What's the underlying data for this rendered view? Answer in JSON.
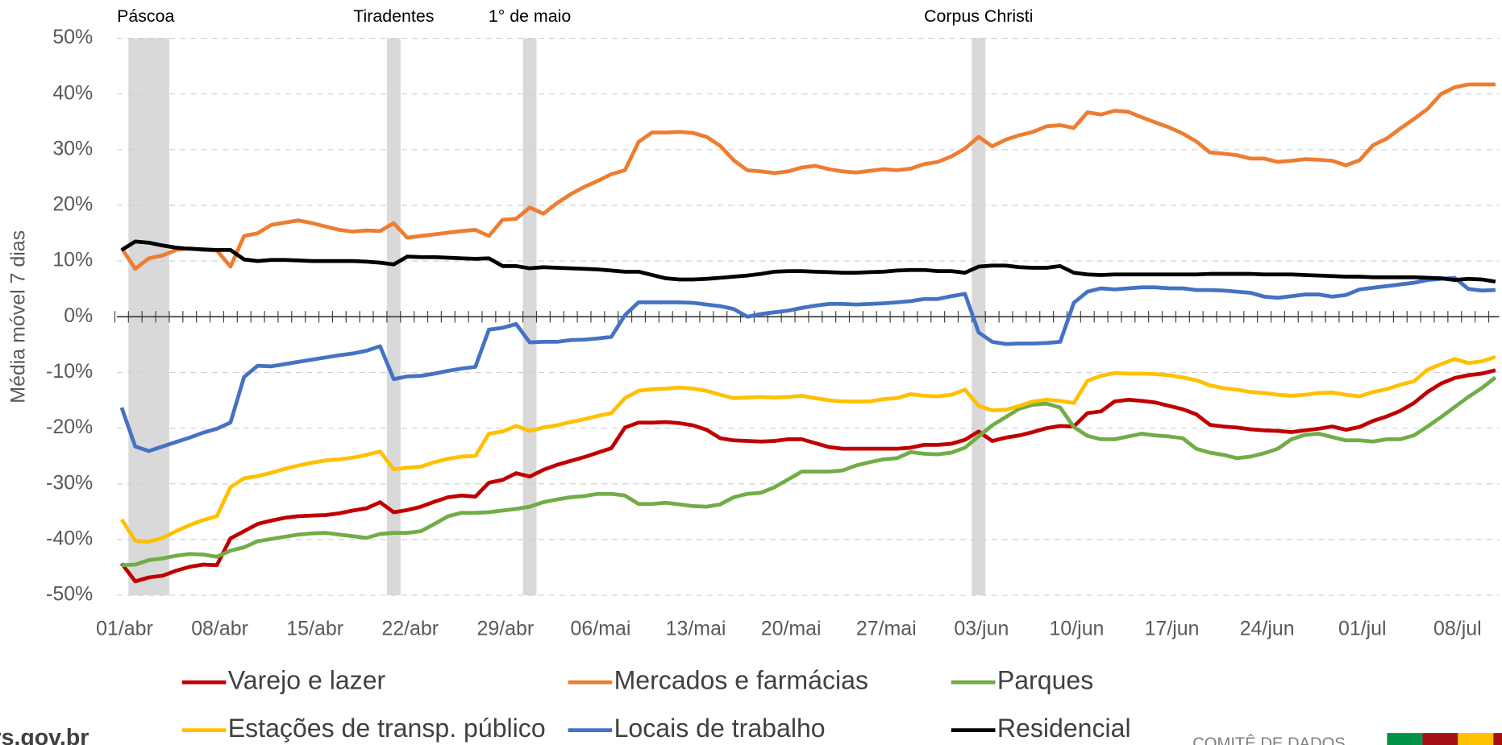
{
  "chart_data": {
    "type": "line",
    "y_axis_label": "Média móvel 7 dias",
    "categories": [
      "01/abr",
      null,
      null,
      null,
      null,
      null,
      null,
      "08/abr",
      null,
      null,
      null,
      null,
      null,
      null,
      "15/abr",
      null,
      null,
      null,
      null,
      null,
      null,
      "22/abr",
      null,
      null,
      null,
      null,
      null,
      null,
      "29/abr",
      null,
      null,
      null,
      null,
      null,
      null,
      "06/mai",
      null,
      null,
      null,
      null,
      null,
      null,
      "13/mai",
      null,
      null,
      null,
      null,
      null,
      null,
      "20/mai",
      null,
      null,
      null,
      null,
      null,
      null,
      "27/mai",
      null,
      null,
      null,
      null,
      null,
      null,
      "03/jun",
      null,
      null,
      null,
      null,
      null,
      null,
      "10/jun",
      null,
      null,
      null,
      null,
      null,
      null,
      "17/jun",
      null,
      null,
      null,
      null,
      null,
      null,
      "24/jun",
      null,
      null,
      null,
      null,
      null,
      null,
      "01/jul",
      null,
      null,
      null,
      null,
      null,
      null,
      "08/jul",
      null,
      null,
      null
    ],
    "ylim": [
      -50,
      50
    ],
    "yticks": [
      {
        "value": -50,
        "label": "-50%"
      },
      {
        "value": -40,
        "label": "-40%"
      },
      {
        "value": -30,
        "label": "-30%"
      },
      {
        "value": -20,
        "label": "-20%"
      },
      {
        "value": -10,
        "label": "-10%"
      },
      {
        "value": 0,
        "label": "0%"
      },
      {
        "value": 10,
        "label": "10%"
      },
      {
        "value": 20,
        "label": "20%"
      },
      {
        "value": 30,
        "label": "30%"
      },
      {
        "value": 40,
        "label": "40%"
      },
      {
        "value": 50,
        "label": "50%"
      }
    ],
    "grid": true,
    "legend": "bottom",
    "shaded_periods": [
      {
        "label": "Páscoa",
        "start": 1,
        "end": 3
      },
      {
        "label": "Tiradentes",
        "start": 20,
        "end": 20
      },
      {
        "label": "1° de maio",
        "start": 30,
        "end": 30
      },
      {
        "label": "Corpus Christi",
        "start": 63,
        "end": 63
      }
    ],
    "series": [
      {
        "name": "Varejo e lazer",
        "color": "#c00000",
        "values": [
          -44.3,
          -47.5,
          -46.8,
          -46.5,
          -45.6,
          -44.9,
          -44.5,
          -44.6,
          -39.8,
          -38.5,
          -37.2,
          -36.6,
          -36.1,
          -35.8,
          -35.7,
          -35.6,
          -35.3,
          -34.8,
          -34.4,
          -33.3,
          -35.1,
          -34.7,
          -34.1,
          -33.2,
          -32.4,
          -32.1,
          -32.3,
          -29.8,
          -29.3,
          -28.1,
          -28.7,
          -27.5,
          -26.6,
          -25.9,
          -25.2,
          -24.4,
          -23.6,
          -19.9,
          -19.0,
          -19.0,
          -18.9,
          -19.1,
          -19.5,
          -20.3,
          -21.8,
          -22.2,
          -22.3,
          -22.4,
          -22.3,
          -22.0,
          -22.0,
          -22.7,
          -23.4,
          -23.7,
          -23.7,
          -23.7,
          -23.7,
          -23.7,
          -23.5,
          -23.0,
          -23.0,
          -22.8,
          -22.1,
          -20.6,
          -22.3,
          -21.7,
          -21.3,
          -20.7,
          -20.0,
          -19.6,
          -19.7,
          -17.3,
          -17.0,
          -15.2,
          -14.9,
          -15.1,
          -15.4,
          -16.0,
          -16.6,
          -17.5,
          -19.4,
          -19.7,
          -19.9,
          -20.2,
          -20.4,
          -20.5,
          -20.7,
          -20.4,
          -20.1,
          -19.7,
          -20.3,
          -19.8,
          -18.7,
          -17.9,
          -16.9,
          -15.5,
          -13.5,
          -12.0,
          -11.0,
          -10.5,
          -10.2,
          -9.6
        ]
      },
      {
        "name": "Mercados e farmácias",
        "color": "#ed7d31",
        "values": [
          12.3,
          8.6,
          10.5,
          11.0,
          12.0,
          12.3,
          12.0,
          11.9,
          9.0,
          14.5,
          15.0,
          16.5,
          16.9,
          17.3,
          16.8,
          16.2,
          15.6,
          15.3,
          15.5,
          15.4,
          16.8,
          14.2,
          14.5,
          14.8,
          15.1,
          15.4,
          15.6,
          14.5,
          17.4,
          17.6,
          19.6,
          18.5,
          20.4,
          22.0,
          23.3,
          24.4,
          25.6,
          26.3,
          31.4,
          33.1,
          33.1,
          33.2,
          33.0,
          32.3,
          30.7,
          28.1,
          26.3,
          26.1,
          25.8,
          26.1,
          26.8,
          27.1,
          26.5,
          26.1,
          25.9,
          26.2,
          26.5,
          26.3,
          26.6,
          27.4,
          27.8,
          28.8,
          30.2,
          32.3,
          30.6,
          31.8,
          32.6,
          33.2,
          34.2,
          34.4,
          33.9,
          36.7,
          36.3,
          37.0,
          36.8,
          35.8,
          34.9,
          34.0,
          32.9,
          31.5,
          29.5,
          29.3,
          29.0,
          28.4,
          28.4,
          27.8,
          28.0,
          28.3,
          28.2,
          28.0,
          27.2,
          28.1,
          30.8,
          32.0,
          33.8,
          35.5,
          37.3,
          40.0,
          41.2,
          41.7,
          41.7,
          41.7
        ]
      },
      {
        "name": "Parques",
        "color": "#70ad47",
        "values": [
          -44.6,
          -44.5,
          -43.7,
          -43.4,
          -42.9,
          -42.6,
          -42.7,
          -43.1,
          -42.0,
          -41.4,
          -40.3,
          -39.9,
          -39.5,
          -39.1,
          -38.9,
          -38.8,
          -39.1,
          -39.4,
          -39.7,
          -39.0,
          -38.8,
          -38.8,
          -38.5,
          -37.2,
          -35.8,
          -35.2,
          -35.2,
          -35.1,
          -34.8,
          -34.5,
          -34.1,
          -33.3,
          -32.8,
          -32.4,
          -32.2,
          -31.8,
          -31.8,
          -32.1,
          -33.6,
          -33.6,
          -33.4,
          -33.7,
          -34.0,
          -34.1,
          -33.7,
          -32.4,
          -31.8,
          -31.6,
          -30.6,
          -29.2,
          -27.8,
          -27.8,
          -27.8,
          -27.6,
          -26.7,
          -26.1,
          -25.6,
          -25.4,
          -24.3,
          -24.6,
          -24.7,
          -24.4,
          -23.5,
          -21.5,
          -19.5,
          -18.0,
          -16.5,
          -15.8,
          -15.6,
          -16.3,
          -19.8,
          -21.4,
          -22.0,
          -22.0,
          -21.5,
          -21.0,
          -21.3,
          -21.5,
          -21.8,
          -23.7,
          -24.4,
          -24.8,
          -25.4,
          -25.1,
          -24.5,
          -23.7,
          -22.0,
          -21.2,
          -21.0,
          -21.6,
          -22.2,
          -22.2,
          -22.4,
          -22.0,
          -22.0,
          -21.3,
          -19.7,
          -18.0,
          -16.2,
          -14.4,
          -12.8,
          -10.9
        ]
      },
      {
        "name": "Estações de transp. público",
        "color": "#ffc000",
        "values": [
          -36.4,
          -40.2,
          -40.4,
          -39.7,
          -38.5,
          -37.4,
          -36.5,
          -35.8,
          -30.6,
          -29.0,
          -28.6,
          -28.0,
          -27.3,
          -26.7,
          -26.2,
          -25.8,
          -25.6,
          -25.3,
          -24.8,
          -24.2,
          -27.4,
          -27.1,
          -26.9,
          -26.1,
          -25.5,
          -25.1,
          -25.0,
          -21.0,
          -20.6,
          -19.6,
          -20.5,
          -19.9,
          -19.5,
          -18.9,
          -18.4,
          -17.8,
          -17.3,
          -14.6,
          -13.3,
          -13.0,
          -12.9,
          -12.7,
          -12.9,
          -13.3,
          -14.0,
          -14.6,
          -14.5,
          -14.4,
          -14.5,
          -14.4,
          -14.2,
          -14.6,
          -15.0,
          -15.2,
          -15.2,
          -15.2,
          -14.8,
          -14.6,
          -13.9,
          -14.2,
          -14.3,
          -14.0,
          -13.1,
          -16.0,
          -16.8,
          -16.7,
          -16.0,
          -15.2,
          -14.9,
          -15.1,
          -15.5,
          -11.5,
          -10.6,
          -10.1,
          -10.2,
          -10.2,
          -10.3,
          -10.5,
          -10.9,
          -11.4,
          -12.3,
          -12.8,
          -13.1,
          -13.5,
          -13.7,
          -14.0,
          -14.2,
          -14.0,
          -13.7,
          -13.6,
          -14.0,
          -14.3,
          -13.5,
          -13.0,
          -12.2,
          -11.6,
          -9.5,
          -8.5,
          -7.6,
          -8.3,
          -8.0,
          -7.2
        ]
      },
      {
        "name": "Locais de trabalho",
        "color": "#4472c4",
        "values": [
          -16.3,
          -23.3,
          -24.1,
          -23.3,
          -22.5,
          -21.7,
          -20.8,
          -20.1,
          -19.0,
          -10.8,
          -8.8,
          -8.9,
          -8.5,
          -8.1,
          -7.7,
          -7.3,
          -6.9,
          -6.6,
          -6.1,
          -5.3,
          -11.2,
          -10.7,
          -10.6,
          -10.2,
          -9.7,
          -9.3,
          -9.0,
          -2.3,
          -2.0,
          -1.3,
          -4.6,
          -4.5,
          -4.5,
          -4.2,
          -4.1,
          -3.9,
          -3.6,
          0.3,
          2.6,
          2.6,
          2.6,
          2.6,
          2.5,
          2.2,
          1.9,
          1.4,
          0.0,
          0.5,
          0.8,
          1.1,
          1.6,
          2.0,
          2.3,
          2.3,
          2.2,
          2.3,
          2.4,
          2.6,
          2.8,
          3.2,
          3.2,
          3.7,
          4.1,
          -2.8,
          -4.5,
          -4.9,
          -4.8,
          -4.8,
          -4.7,
          -4.5,
          2.5,
          4.5,
          5.1,
          4.9,
          5.1,
          5.3,
          5.3,
          5.1,
          5.1,
          4.8,
          4.8,
          4.7,
          4.5,
          4.3,
          3.6,
          3.4,
          3.7,
          4.0,
          4.0,
          3.6,
          3.9,
          4.9,
          5.2,
          5.5,
          5.8,
          6.1,
          6.6,
          6.8,
          7.0,
          5.0,
          4.7,
          4.8
        ]
      },
      {
        "name": "Residencial",
        "color": "#000000",
        "values": [
          12.0,
          13.5,
          13.3,
          12.8,
          12.4,
          12.2,
          12.1,
          12.0,
          12.0,
          10.3,
          10.0,
          10.2,
          10.2,
          10.1,
          10.0,
          10.0,
          10.0,
          10.0,
          9.9,
          9.7,
          9.4,
          10.8,
          10.7,
          10.7,
          10.6,
          10.5,
          10.4,
          10.5,
          9.1,
          9.1,
          8.7,
          8.9,
          8.8,
          8.7,
          8.6,
          8.5,
          8.3,
          8.1,
          8.1,
          7.5,
          6.9,
          6.7,
          6.7,
          6.8,
          7.0,
          7.2,
          7.4,
          7.7,
          8.1,
          8.2,
          8.2,
          8.1,
          8.0,
          7.9,
          7.9,
          8.0,
          8.1,
          8.3,
          8.4,
          8.4,
          8.2,
          8.2,
          7.9,
          9.0,
          9.2,
          9.2,
          8.9,
          8.8,
          8.8,
          9.1,
          7.9,
          7.6,
          7.5,
          7.6,
          7.6,
          7.6,
          7.6,
          7.6,
          7.6,
          7.6,
          7.7,
          7.7,
          7.7,
          7.7,
          7.6,
          7.6,
          7.6,
          7.5,
          7.4,
          7.3,
          7.2,
          7.2,
          7.1,
          7.1,
          7.1,
          7.1,
          7.0,
          6.9,
          6.6,
          6.8,
          6.7,
          6.3
        ]
      }
    ]
  },
  "footer": {
    "site": "rs.gov.br",
    "committee": "COMITÊ DE DADOS"
  }
}
